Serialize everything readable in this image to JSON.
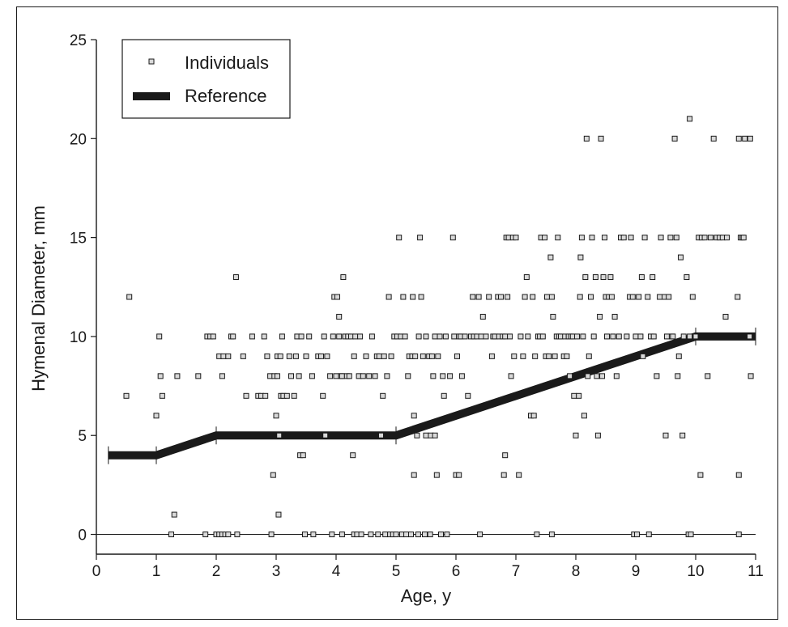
{
  "chart_data": {
    "type": "scatter",
    "xlabel": "Age, y",
    "ylabel": "Hymenal Diameter, mm",
    "xlim": [
      0,
      11
    ],
    "ylim": [
      -1,
      25
    ],
    "xticks": [
      "0",
      "1",
      "2",
      "3",
      "4",
      "5",
      "6",
      "7",
      "8",
      "9",
      "10",
      "11"
    ],
    "yticks": [
      "0",
      "5",
      "10",
      "15",
      "20",
      "25"
    ],
    "grid": false,
    "legend": "top-left",
    "colors": {
      "axis": "#1a1a1a",
      "marker_face": "#d9d9d9",
      "reference": "#1a1a1a"
    },
    "series": [
      {
        "name": "Individuals",
        "kind": "scatter",
        "points": [
          [
            0.5,
            7
          ],
          [
            0.55,
            12
          ],
          [
            1.0,
            6
          ],
          [
            1.05,
            10
          ],
          [
            1.07,
            8
          ],
          [
            1.1,
            7
          ],
          [
            1.25,
            0
          ],
          [
            1.3,
            1
          ],
          [
            1.35,
            8
          ],
          [
            1.7,
            8
          ],
          [
            1.82,
            0
          ],
          [
            1.85,
            10
          ],
          [
            1.9,
            10
          ],
          [
            1.95,
            10
          ],
          [
            2.0,
            0
          ],
          [
            2.05,
            0
          ],
          [
            2.05,
            9
          ],
          [
            2.1,
            0
          ],
          [
            2.1,
            8
          ],
          [
            2.12,
            9
          ],
          [
            2.15,
            0
          ],
          [
            2.2,
            9
          ],
          [
            2.2,
            0
          ],
          [
            2.25,
            10
          ],
          [
            2.28,
            10
          ],
          [
            2.33,
            13
          ],
          [
            2.35,
            0
          ],
          [
            2.45,
            9
          ],
          [
            2.5,
            7
          ],
          [
            2.6,
            10
          ],
          [
            2.7,
            7
          ],
          [
            2.75,
            7
          ],
          [
            2.8,
            10
          ],
          [
            2.82,
            7
          ],
          [
            2.85,
            9
          ],
          [
            2.9,
            8
          ],
          [
            2.92,
            0
          ],
          [
            2.95,
            3
          ],
          [
            2.97,
            8
          ],
          [
            3.0,
            6
          ],
          [
            3.02,
            9
          ],
          [
            3.02,
            8
          ],
          [
            3.04,
            1
          ],
          [
            3.05,
            5
          ],
          [
            3.07,
            9
          ],
          [
            3.08,
            7
          ],
          [
            3.1,
            10
          ],
          [
            3.12,
            7
          ],
          [
            3.18,
            7
          ],
          [
            3.22,
            9
          ],
          [
            3.25,
            8
          ],
          [
            3.3,
            7
          ],
          [
            3.33,
            9
          ],
          [
            3.35,
            10
          ],
          [
            3.38,
            8
          ],
          [
            3.4,
            4
          ],
          [
            3.42,
            10
          ],
          [
            3.45,
            4
          ],
          [
            3.48,
            0
          ],
          [
            3.5,
            9
          ],
          [
            3.55,
            10
          ],
          [
            3.6,
            8
          ],
          [
            3.62,
            0
          ],
          [
            3.7,
            9
          ],
          [
            3.75,
            9
          ],
          [
            3.78,
            7
          ],
          [
            3.8,
            10
          ],
          [
            3.82,
            5
          ],
          [
            3.85,
            9
          ],
          [
            3.9,
            8
          ],
          [
            3.93,
            0
          ],
          [
            3.95,
            10
          ],
          [
            3.97,
            12
          ],
          [
            4.0,
            8
          ],
          [
            4.02,
            12
          ],
          [
            4.05,
            10
          ],
          [
            4.05,
            11
          ],
          [
            4.08,
            8
          ],
          [
            4.1,
            0
          ],
          [
            4.1,
            8
          ],
          [
            4.12,
            13
          ],
          [
            4.15,
            10
          ],
          [
            4.18,
            8
          ],
          [
            4.2,
            10
          ],
          [
            4.22,
            8
          ],
          [
            4.25,
            10
          ],
          [
            4.28,
            4
          ],
          [
            4.3,
            0
          ],
          [
            4.3,
            9
          ],
          [
            4.32,
            10
          ],
          [
            4.35,
            0
          ],
          [
            4.38,
            8
          ],
          [
            4.4,
            10
          ],
          [
            4.42,
            0
          ],
          [
            4.45,
            8
          ],
          [
            4.5,
            9
          ],
          [
            4.55,
            8
          ],
          [
            4.58,
            0
          ],
          [
            4.6,
            10
          ],
          [
            4.65,
            8
          ],
          [
            4.68,
            9
          ],
          [
            4.7,
            0
          ],
          [
            4.72,
            9
          ],
          [
            4.75,
            5
          ],
          [
            4.78,
            7
          ],
          [
            4.8,
            9
          ],
          [
            4.82,
            0
          ],
          [
            4.85,
            8
          ],
          [
            4.88,
            12
          ],
          [
            4.9,
            0
          ],
          [
            4.92,
            9
          ],
          [
            4.95,
            0
          ],
          [
            4.97,
            10
          ],
          [
            5.0,
            0
          ],
          [
            5.02,
            10
          ],
          [
            5.05,
            15
          ],
          [
            5.08,
            10
          ],
          [
            5.1,
            0
          ],
          [
            5.12,
            12
          ],
          [
            5.15,
            10
          ],
          [
            5.17,
            0
          ],
          [
            5.2,
            8
          ],
          [
            5.22,
            9
          ],
          [
            5.25,
            0
          ],
          [
            5.27,
            9
          ],
          [
            5.28,
            12
          ],
          [
            5.3,
            6
          ],
          [
            5.3,
            3
          ],
          [
            5.32,
            9
          ],
          [
            5.35,
            5
          ],
          [
            5.37,
            0
          ],
          [
            5.38,
            10
          ],
          [
            5.4,
            15
          ],
          [
            5.42,
            12
          ],
          [
            5.45,
            9
          ],
          [
            5.48,
            0
          ],
          [
            5.5,
            5
          ],
          [
            5.5,
            10
          ],
          [
            5.55,
            9
          ],
          [
            5.57,
            0
          ],
          [
            5.58,
            5
          ],
          [
            5.6,
            9
          ],
          [
            5.62,
            8
          ],
          [
            5.65,
            5
          ],
          [
            5.65,
            10
          ],
          [
            5.68,
            3
          ],
          [
            5.7,
            9
          ],
          [
            5.73,
            10
          ],
          [
            5.75,
            0
          ],
          [
            5.78,
            8
          ],
          [
            5.8,
            7
          ],
          [
            5.83,
            10
          ],
          [
            5.85,
            0
          ],
          [
            5.9,
            8
          ],
          [
            5.95,
            15
          ],
          [
            5.97,
            10
          ],
          [
            6.0,
            3
          ],
          [
            6.02,
            9
          ],
          [
            6.05,
            3
          ],
          [
            6.05,
            10
          ],
          [
            6.08,
            10
          ],
          [
            6.1,
            8
          ],
          [
            6.15,
            10
          ],
          [
            6.2,
            7
          ],
          [
            6.25,
            10
          ],
          [
            6.28,
            12
          ],
          [
            6.3,
            10
          ],
          [
            6.35,
            10
          ],
          [
            6.38,
            12
          ],
          [
            6.4,
            0
          ],
          [
            6.42,
            10
          ],
          [
            6.45,
            11
          ],
          [
            6.5,
            10
          ],
          [
            6.55,
            12
          ],
          [
            6.6,
            9
          ],
          [
            6.62,
            10
          ],
          [
            6.65,
            10
          ],
          [
            6.7,
            12
          ],
          [
            6.72,
            10
          ],
          [
            6.75,
            12
          ],
          [
            6.78,
            10
          ],
          [
            6.8,
            3
          ],
          [
            6.82,
            4
          ],
          [
            6.82,
            10
          ],
          [
            6.84,
            15
          ],
          [
            6.86,
            12
          ],
          [
            6.88,
            15
          ],
          [
            6.9,
            10
          ],
          [
            6.92,
            8
          ],
          [
            6.95,
            15
          ],
          [
            6.97,
            9
          ],
          [
            7.0,
            15
          ],
          [
            7.05,
            3
          ],
          [
            7.08,
            10
          ],
          [
            7.12,
            9
          ],
          [
            7.15,
            12
          ],
          [
            7.18,
            13
          ],
          [
            7.2,
            10
          ],
          [
            7.25,
            6
          ],
          [
            7.28,
            12
          ],
          [
            7.3,
            6
          ],
          [
            7.32,
            9
          ],
          [
            7.35,
            0
          ],
          [
            7.37,
            10
          ],
          [
            7.4,
            10
          ],
          [
            7.42,
            15
          ],
          [
            7.45,
            10
          ],
          [
            7.48,
            15
          ],
          [
            7.5,
            9
          ],
          [
            7.52,
            12
          ],
          [
            7.55,
            9
          ],
          [
            7.58,
            14
          ],
          [
            7.6,
            0
          ],
          [
            7.6,
            12
          ],
          [
            7.62,
            11
          ],
          [
            7.65,
            9
          ],
          [
            7.68,
            10
          ],
          [
            7.7,
            15
          ],
          [
            7.72,
            10
          ],
          [
            7.75,
            10
          ],
          [
            7.8,
            9
          ],
          [
            7.82,
            10
          ],
          [
            7.85,
            9
          ],
          [
            7.88,
            10
          ],
          [
            7.9,
            8
          ],
          [
            7.92,
            10
          ],
          [
            7.95,
            10
          ],
          [
            7.97,
            7
          ],
          [
            8.0,
            5
          ],
          [
            8.02,
            10
          ],
          [
            8.05,
            7
          ],
          [
            8.07,
            12
          ],
          [
            8.08,
            14
          ],
          [
            8.1,
            15
          ],
          [
            8.12,
            10
          ],
          [
            8.14,
            6
          ],
          [
            8.16,
            13
          ],
          [
            8.18,
            20
          ],
          [
            8.2,
            8
          ],
          [
            8.22,
            9
          ],
          [
            8.25,
            12
          ],
          [
            8.27,
            15
          ],
          [
            8.3,
            10
          ],
          [
            8.33,
            13
          ],
          [
            8.35,
            8
          ],
          [
            8.37,
            5
          ],
          [
            8.4,
            11
          ],
          [
            8.42,
            20
          ],
          [
            8.44,
            8
          ],
          [
            8.46,
            13
          ],
          [
            8.48,
            15
          ],
          [
            8.5,
            12
          ],
          [
            8.52,
            10
          ],
          [
            8.55,
            12
          ],
          [
            8.58,
            13
          ],
          [
            8.6,
            12
          ],
          [
            8.62,
            10
          ],
          [
            8.65,
            11
          ],
          [
            8.68,
            8
          ],
          [
            8.72,
            10
          ],
          [
            8.75,
            15
          ],
          [
            8.8,
            15
          ],
          [
            8.85,
            10
          ],
          [
            8.9,
            12
          ],
          [
            8.92,
            15
          ],
          [
            8.95,
            12
          ],
          [
            8.97,
            0
          ],
          [
            9.0,
            10
          ],
          [
            9.02,
            0
          ],
          [
            9.05,
            12
          ],
          [
            9.08,
            10
          ],
          [
            9.1,
            13
          ],
          [
            9.12,
            9
          ],
          [
            9.15,
            15
          ],
          [
            9.2,
            12
          ],
          [
            9.22,
            0
          ],
          [
            9.25,
            10
          ],
          [
            9.28,
            13
          ],
          [
            9.3,
            10
          ],
          [
            9.35,
            8
          ],
          [
            9.4,
            12
          ],
          [
            9.42,
            15
          ],
          [
            9.48,
            12
          ],
          [
            9.5,
            5
          ],
          [
            9.52,
            10
          ],
          [
            9.55,
            12
          ],
          [
            9.58,
            15
          ],
          [
            9.6,
            10
          ],
          [
            9.62,
            10
          ],
          [
            9.65,
            20
          ],
          [
            9.68,
            15
          ],
          [
            9.7,
            8
          ],
          [
            9.72,
            9
          ],
          [
            9.75,
            14
          ],
          [
            9.78,
            5
          ],
          [
            9.8,
            10
          ],
          [
            9.85,
            13
          ],
          [
            9.88,
            0
          ],
          [
            9.9,
            10
          ],
          [
            9.9,
            21
          ],
          [
            9.92,
            0
          ],
          [
            9.95,
            12
          ],
          [
            10.0,
            10
          ],
          [
            10.05,
            15
          ],
          [
            10.08,
            3
          ],
          [
            10.1,
            15
          ],
          [
            10.15,
            15
          ],
          [
            10.2,
            8
          ],
          [
            10.25,
            15
          ],
          [
            10.3,
            20
          ],
          [
            10.35,
            15
          ],
          [
            10.4,
            15
          ],
          [
            10.45,
            15
          ],
          [
            10.5,
            11
          ],
          [
            10.52,
            15
          ],
          [
            10.7,
            12
          ],
          [
            10.72,
            3
          ],
          [
            10.75,
            15
          ],
          [
            10.72,
            0
          ],
          [
            10.78,
            15
          ],
          [
            10.8,
            15
          ],
          [
            10.82,
            20
          ],
          [
            10.72,
            20
          ],
          [
            10.9,
            10
          ],
          [
            10.92,
            8
          ],
          [
            10.91,
            20
          ]
        ]
      },
      {
        "name": "Reference",
        "kind": "line",
        "points": [
          [
            0.2,
            4
          ],
          [
            1,
            4
          ],
          [
            2,
            5
          ],
          [
            5,
            5
          ],
          [
            10,
            10
          ],
          [
            11,
            10
          ]
        ]
      }
    ]
  }
}
